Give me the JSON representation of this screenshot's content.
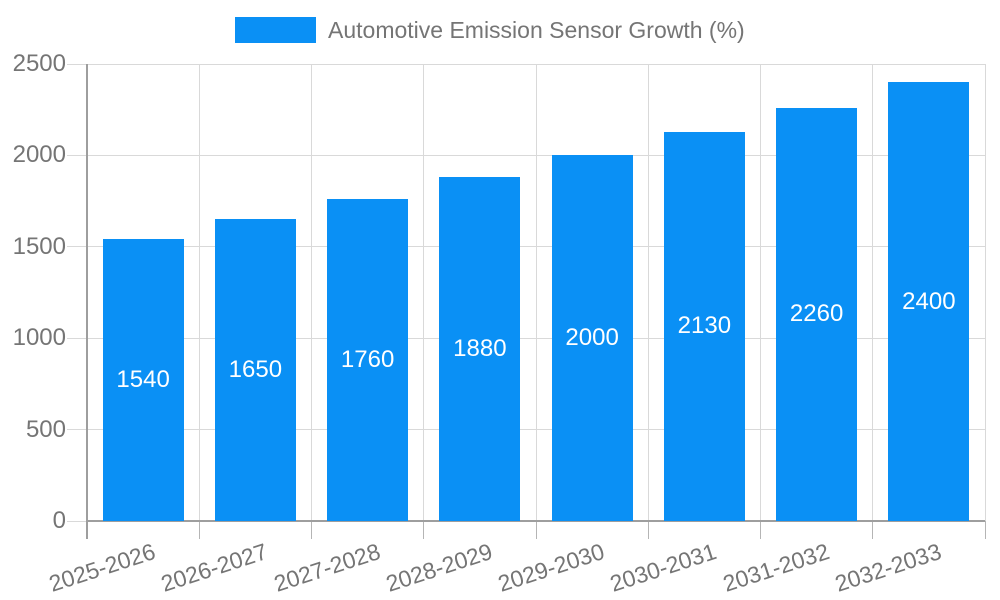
{
  "legend": {
    "label": "Automotive Emission Sensor Growth (%)"
  },
  "chart_data": {
    "type": "bar",
    "title": "Automotive Emission Sensor Growth (%)",
    "categories": [
      "2025-2026",
      "2026-2027",
      "2027-2028",
      "2028-2029",
      "2029-2030",
      "2030-2031",
      "2031-2032",
      "2032-2033"
    ],
    "values": [
      1540,
      1650,
      1760,
      1880,
      2000,
      2130,
      2260,
      2400
    ],
    "xlabel": "",
    "ylabel": "",
    "ylim": [
      0,
      2500
    ],
    "yticks": [
      0,
      500,
      1000,
      1500,
      2000,
      2500
    ],
    "grid": true,
    "legend_position": "top",
    "bar_value_labels_inside": true,
    "colors": {
      "bar": "#0a90f5",
      "grid": "#d9d9d9",
      "axis": "#9e9e9e",
      "tick": "#b5b5b5",
      "text": "#757575",
      "value_text": "#ffffff",
      "background": "#ffffff"
    }
  }
}
